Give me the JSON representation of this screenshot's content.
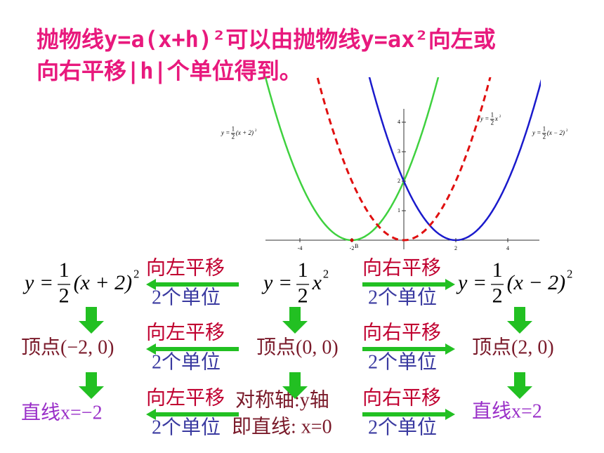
{
  "title": {
    "line1": "抛物线y=a(x+h)²可以由抛物线y=ax²向左或",
    "line2": "向右平移|h|个单位得到。"
  },
  "graph": {
    "labels": {
      "left": {
        "lhs": "y =",
        "num": "1",
        "den": "2",
        "rest": "(x + 2)",
        "exp": "2"
      },
      "middle": {
        "lhs": "y =",
        "num": "1",
        "den": "2",
        "rest": "x",
        "exp": "2"
      },
      "right": {
        "lhs": "y =",
        "num": "1",
        "den": "2",
        "rest": "(x − 2)",
        "exp": "2"
      }
    },
    "x_ticks": [
      "-4",
      "-2",
      "2",
      "4"
    ],
    "y_ticks": [
      "1",
      "2",
      "3",
      "4"
    ],
    "point": "B"
  },
  "rows": [
    {
      "left": {
        "lhs": "y =",
        "num": "1",
        "den": "2",
        "rest": "(x + 2)",
        "exp": "2"
      },
      "left_shift": {
        "top": "向左平移",
        "bottom": "2个单位"
      },
      "middle": {
        "lhs": "y =",
        "num": "1",
        "den": "2",
        "rest": "x",
        "exp": "2"
      },
      "right_shift": {
        "top": "向右平移",
        "bottom": "2个单位"
      },
      "right": {
        "lhs": "y =",
        "num": "1",
        "den": "2",
        "rest": "(x − 2)",
        "exp": "2"
      }
    },
    {
      "left": "顶点(−2, 0)",
      "left_shift": {
        "top": "向左平移",
        "bottom": "2个单位"
      },
      "middle": "顶点(0, 0)",
      "right_shift": {
        "top": "向右平移",
        "bottom": "2个单位"
      },
      "right": "顶点(2, 0)"
    },
    {
      "left": "直线x=−2",
      "left_shift": {
        "top": "向左平移",
        "bottom": "2个单位"
      },
      "middle": {
        "line1": "对称轴:y轴",
        "line2": "即直线: x=0"
      },
      "right_shift": {
        "top": "向右平移",
        "bottom": "2个单位"
      },
      "right": "直线x=2"
    }
  ]
}
